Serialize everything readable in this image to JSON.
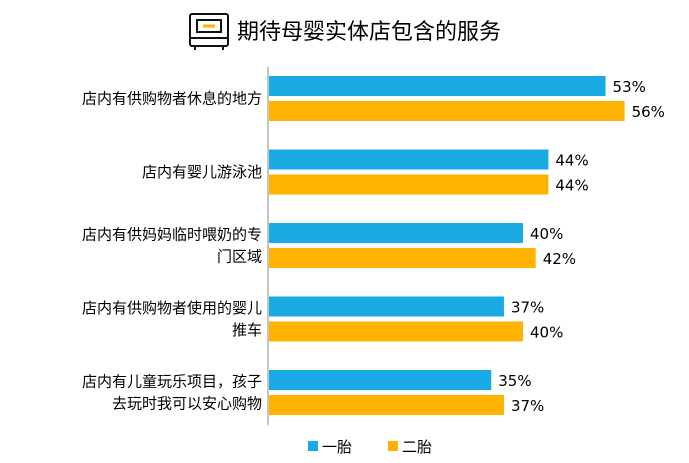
{
  "chart_data": {
    "type": "bar",
    "orientation": "horizontal",
    "title": "期待母婴实体店包含的服务",
    "categories": [
      [
        "店内有供购物者休息的地方"
      ],
      [
        "店内有婴儿游泳池"
      ],
      [
        "店内有供妈妈临时喂奶的专",
        "门区域"
      ],
      [
        "店内有供购物者使用的婴儿",
        "推车"
      ],
      [
        "店内有儿童玩乐项目，孩子",
        "去玩时我可以安心购物"
      ]
    ],
    "series": [
      {
        "name": "一胎",
        "color": "#1AAAE3",
        "values": [
          53,
          44,
          40,
          37,
          35
        ]
      },
      {
        "name": "二胎",
        "color": "#FFB300",
        "values": [
          56,
          44,
          42,
          40,
          37
        ]
      }
    ],
    "value_suffix": "%",
    "xlim": [
      0,
      100
    ],
    "grid": false,
    "legend": "bottom",
    "title_icon": "sofa-icon"
  }
}
